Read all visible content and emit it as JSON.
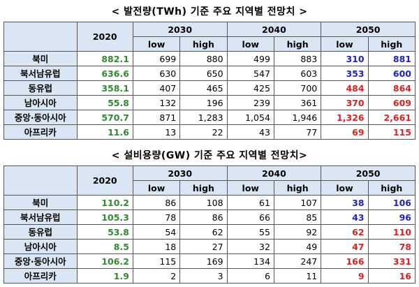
{
  "colors": {
    "header_bg": "#dbe6f4",
    "green": "#2e8b2e",
    "blue": "#1f1fcc",
    "red": "#e02020",
    "black": "#000000"
  },
  "tables": [
    {
      "caption": "< 발전량(TWh) 기준 주요 지역별 전망치 >",
      "year_2020": "2020",
      "years": [
        "2030",
        "2040",
        "2050"
      ],
      "sub": [
        "low",
        "high"
      ],
      "rows": [
        {
          "region": "북미",
          "v2020": "882.1",
          "vals": [
            "699",
            "880",
            "499",
            "883",
            "310",
            "881"
          ],
          "c2050": "blue"
        },
        {
          "region": "북서남유럽",
          "v2020": "636.6",
          "vals": [
            "630",
            "650",
            "547",
            "603",
            "353",
            "600"
          ],
          "c2050": "blue"
        },
        {
          "region": "동유럽",
          "v2020": "358.1",
          "vals": [
            "407",
            "465",
            "425",
            "700",
            "484",
            "864"
          ],
          "c2050": "red"
        },
        {
          "region": "남아시아",
          "v2020": "55.8",
          "vals": [
            "132",
            "196",
            "239",
            "361",
            "370",
            "609"
          ],
          "c2050": "red"
        },
        {
          "region": "중앙·동아시아",
          "v2020": "570.7",
          "vals": [
            "871",
            "1,283",
            "1,054",
            "1,946",
            "1,326",
            "2,661"
          ],
          "c2050": "red"
        },
        {
          "region": "아프리카",
          "v2020": "11.6",
          "vals": [
            "13",
            "22",
            "43",
            "77",
            "69",
            "115"
          ],
          "c2050": "red"
        }
      ]
    },
    {
      "caption": "< 설비용량(GW) 기준 주요 지역별 전망치>",
      "year_2020": "2020",
      "years": [
        "2030",
        "2040",
        "2050"
      ],
      "sub": [
        "low",
        "high"
      ],
      "rows": [
        {
          "region": "북미",
          "v2020": "110.2",
          "vals": [
            "86",
            "108",
            "61",
            "107",
            "38",
            "106"
          ],
          "c2050": "blue"
        },
        {
          "region": "북서남유럽",
          "v2020": "105.3",
          "vals": [
            "78",
            "86",
            "66",
            "85",
            "43",
            "96"
          ],
          "c2050": "blue"
        },
        {
          "region": "동유럽",
          "v2020": "53.8",
          "vals": [
            "54",
            "62",
            "55",
            "92",
            "62",
            "110"
          ],
          "c2050": "red"
        },
        {
          "region": "남아시아",
          "v2020": "8.5",
          "vals": [
            "18",
            "27",
            "32",
            "49",
            "47",
            "78"
          ],
          "c2050": "red"
        },
        {
          "region": "중앙·동아시아",
          "v2020": "106.2",
          "vals": [
            "115",
            "169",
            "134",
            "247",
            "166",
            "331"
          ],
          "c2050": "red"
        },
        {
          "region": "아프리카",
          "v2020": "1.9",
          "vals": [
            "2",
            "3",
            "6",
            "11",
            "9",
            "16"
          ],
          "c2050": "red"
        }
      ]
    }
  ]
}
